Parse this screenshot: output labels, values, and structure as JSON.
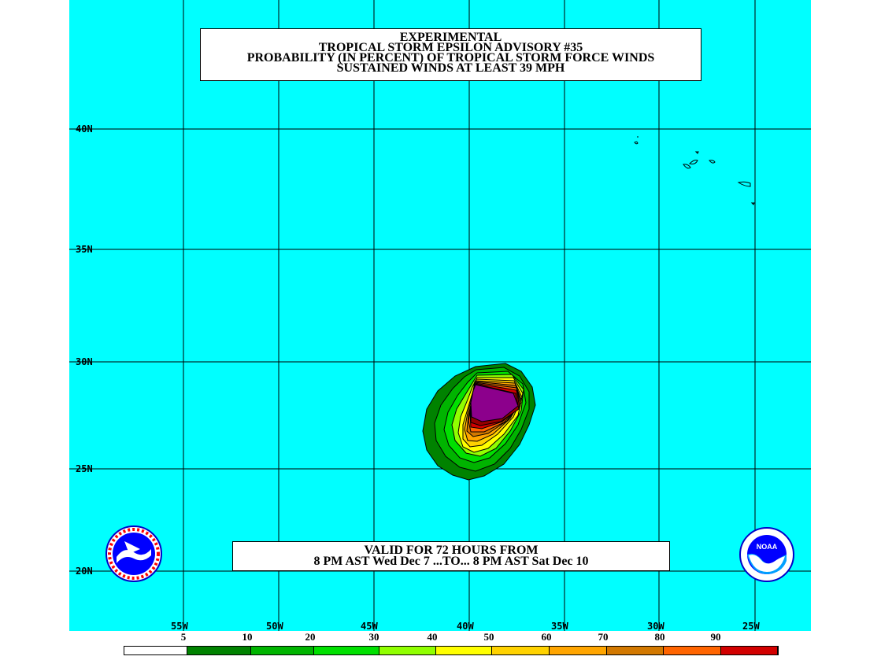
{
  "title_lines": [
    "EXPERIMENTAL",
    "TROPICAL STORM EPSILON ADVISORY #35",
    "PROBABILITY (IN PERCENT) OF TROPICAL STORM FORCE WINDS",
    "SUSTAINED WINDS AT LEAST 39 MPH"
  ],
  "valid_lines": [
    "VALID FOR 72 HOURS FROM",
    "8 PM AST Wed Dec 7 ...TO... 8 PM AST Sat Dec 10"
  ],
  "lat_labels": [
    "40N",
    "35N",
    "30N",
    "25N",
    "20N"
  ],
  "lon_labels": [
    "55W",
    "50W",
    "45W",
    "40W",
    "35W",
    "30W",
    "25W"
  ],
  "legend_values": [
    "5",
    "10",
    "20",
    "30",
    "40",
    "50",
    "60",
    "70",
    "80",
    "90"
  ],
  "legend_colors": [
    "#ffffff",
    "#008200",
    "#00b400",
    "#00e000",
    "#90ff00",
    "#ffff00",
    "#ffd200",
    "#ffa500",
    "#d27800",
    "#ff6400",
    "#d20000",
    "#960000",
    "#8c008c"
  ],
  "colors": {
    "ocean": "#00ffff",
    "grid": "#000000"
  },
  "logos": {
    "left": "nws-logo-icon",
    "right": "noaa-logo-icon"
  },
  "logo_text": {
    "noaa": "NOAA"
  }
}
